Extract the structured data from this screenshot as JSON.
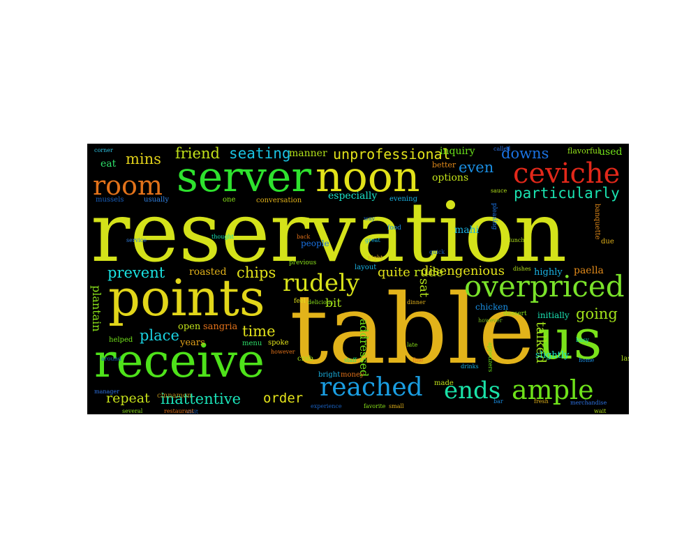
{
  "wordcloud": {
    "background": "#000000",
    "words": [
      {
        "text": "reservation",
        "color": "#d4e21a"
      },
      {
        "text": "table",
        "color": "#e2b31a"
      },
      {
        "text": "receive",
        "color": "#4ee21a"
      },
      {
        "text": "points",
        "color": "#e2d61a"
      },
      {
        "text": "us",
        "color": "#7ae21a"
      },
      {
        "text": "server",
        "color": "#2ee22e"
      },
      {
        "text": "noon",
        "color": "#e2e21a"
      },
      {
        "text": "room",
        "color": "#e2721a"
      },
      {
        "text": "ceviche",
        "color": "#e2281a"
      },
      {
        "text": "overpriced",
        "color": "#7ae22a"
      },
      {
        "text": "rudely",
        "color": "#d8e21a"
      },
      {
        "text": "reached",
        "color": "#1a9ee2"
      },
      {
        "text": "ends",
        "color": "#1ae2a8"
      },
      {
        "text": "ample",
        "color": "#6ee21a"
      },
      {
        "text": "particularly",
        "color": "#1ae2b0"
      },
      {
        "text": "going",
        "color": "#a2e21a"
      },
      {
        "text": "friend",
        "color": "#c2e21a"
      },
      {
        "text": "seating",
        "color": "#1ac2e2"
      },
      {
        "text": "mins",
        "color": "#e2d21a"
      },
      {
        "text": "unprofessional",
        "color": "#e2e21a"
      },
      {
        "text": "downs",
        "color": "#1a72e2"
      },
      {
        "text": "even",
        "color": "#1a8ee2"
      },
      {
        "text": "prevent",
        "color": "#1ae2e2"
      },
      {
        "text": "chips",
        "color": "#e2e21a"
      },
      {
        "text": "inattentive",
        "color": "#1ae2b8"
      },
      {
        "text": "repeat",
        "color": "#c8e21a"
      },
      {
        "text": "order",
        "color": "#e2e21a"
      },
      {
        "text": "place",
        "color": "#1ad2e2"
      },
      {
        "text": "time",
        "color": "#e2e21a"
      },
      {
        "text": "talked",
        "color": "#a2e21a"
      },
      {
        "text": "disengenious",
        "color": "#e2e21a"
      },
      {
        "text": "quite",
        "color": "#e2e21a"
      },
      {
        "text": "rude",
        "color": "#c2e21a"
      },
      {
        "text": "sat",
        "color": "#b2e21a"
      },
      {
        "text": "bit",
        "color": "#a8e21a"
      },
      {
        "text": "plantain",
        "color": "#8ae21a"
      },
      {
        "text": "addressed",
        "color": "#72e21a"
      },
      {
        "text": "manner",
        "color": "#b2e21a"
      },
      {
        "text": "inquiry",
        "color": "#6ae21a"
      },
      {
        "text": "options",
        "color": "#c2e21a"
      },
      {
        "text": "especially",
        "color": "#1ae2c8"
      },
      {
        "text": "paella",
        "color": "#e28a1a"
      },
      {
        "text": "eat",
        "color": "#2ee26a"
      },
      {
        "text": "used",
        "color": "#72e21a"
      },
      {
        "text": "flavorful",
        "color": "#92e21a"
      },
      {
        "text": "corner",
        "color": "#2ec2e2"
      },
      {
        "text": "mussels",
        "color": "#1a62c2"
      },
      {
        "text": "usually",
        "color": "#3282e2"
      },
      {
        "text": "one",
        "color": "#8ae21a"
      },
      {
        "text": "conversation",
        "color": "#e2b21a"
      },
      {
        "text": "evening",
        "color": "#1ab2e2"
      },
      {
        "text": "better",
        "color": "#e28a1a"
      },
      {
        "text": "made",
        "color": "#c2e21a"
      },
      {
        "text": "people",
        "color": "#1a72e2"
      },
      {
        "text": "mahi",
        "color": "#1ab2e2"
      },
      {
        "text": "roasted",
        "color": "#e2b21a"
      },
      {
        "text": "sangria",
        "color": "#e2721a"
      },
      {
        "text": "open",
        "color": "#c2e21a"
      },
      {
        "text": "years",
        "color": "#e2a21a"
      },
      {
        "text": "cinnamon",
        "color": "#b28a1a"
      },
      {
        "text": "helped",
        "color": "#72e21a"
      },
      {
        "text": "menu",
        "color": "#2ee26a"
      },
      {
        "text": "spoke",
        "color": "#e2e21a"
      },
      {
        "text": "crab",
        "color": "#a2e21a"
      },
      {
        "text": "bright",
        "color": "#1ab2e2"
      },
      {
        "text": "money",
        "color": "#e2721a"
      },
      {
        "text": "highly",
        "color": "#1ab2e2"
      },
      {
        "text": "initially",
        "color": "#1ae2b2"
      },
      {
        "text": "slightly",
        "color": "#1ae2c2"
      },
      {
        "text": "chicken",
        "color": "#1a8ee2"
      },
      {
        "text": "dessert",
        "color": "#8ae21a"
      },
      {
        "text": "last",
        "color": "#b2e21a"
      },
      {
        "text": "due",
        "color": "#e2b21a"
      },
      {
        "text": "banquette",
        "color": "#e28a1a"
      },
      {
        "text": "layout",
        "color": "#1ab2e2"
      },
      {
        "text": "feel",
        "color": "#e2e21a"
      },
      {
        "text": "called",
        "color": "#2e72e2"
      },
      {
        "text": "previous",
        "color": "#8ae21a"
      },
      {
        "text": "pleasing",
        "color": "#1a72e2"
      },
      {
        "text": "appetizers",
        "color": "#6ae21a"
      },
      {
        "text": "food",
        "color": "#1a8ee2"
      },
      {
        "text": "thought",
        "color": "#1ae2b2"
      },
      {
        "text": "dinner",
        "color": "#e2b21a"
      },
      {
        "text": "around",
        "color": "#1a62c2"
      },
      {
        "text": "however",
        "color": "#e2721a"
      },
      {
        "text": "however",
        "color": "#72b21a"
      },
      {
        "text": "service",
        "color": "#3282e2"
      },
      {
        "text": "way",
        "color": "#1a62c2"
      },
      {
        "text": "lunch",
        "color": "#b2e21a"
      },
      {
        "text": "delicious",
        "color": "#8ae21a"
      },
      {
        "text": "fine",
        "color": "#e2721a"
      },
      {
        "text": "home",
        "color": "#1a8ee2"
      },
      {
        "text": "manager",
        "color": "#2e72e2"
      },
      {
        "text": "small",
        "color": "#e2b21a"
      },
      {
        "text": "busy",
        "color": "#1ae2b2"
      },
      {
        "text": "wait",
        "color": "#b2e21a"
      },
      {
        "text": "visit",
        "color": "#1a62c2"
      },
      {
        "text": "several",
        "color": "#8ae21a"
      },
      {
        "text": "back",
        "color": "#e2721a"
      },
      {
        "text": "great",
        "color": "#1ab2e2"
      },
      {
        "text": "night",
        "color": "#e2b21a"
      },
      {
        "text": "merchandise",
        "color": "#2e72e2"
      },
      {
        "text": "dishes",
        "color": "#b2e21a"
      },
      {
        "text": "quick",
        "color": "#1a62c2"
      },
      {
        "text": "favorite",
        "color": "#8ae21a"
      },
      {
        "text": "drinks",
        "color": "#1ab2e2"
      },
      {
        "text": "restaurant",
        "color": "#e2721a"
      },
      {
        "text": "bar",
        "color": "#1a8ee2"
      },
      {
        "text": "staff",
        "color": "#2ee26a"
      },
      {
        "text": "sauce",
        "color": "#b2e21a"
      },
      {
        "text": "fresh",
        "color": "#e2b21a"
      },
      {
        "text": "experience",
        "color": "#1a62c2"
      },
      {
        "text": "late",
        "color": "#8ae21a"
      }
    ]
  }
}
